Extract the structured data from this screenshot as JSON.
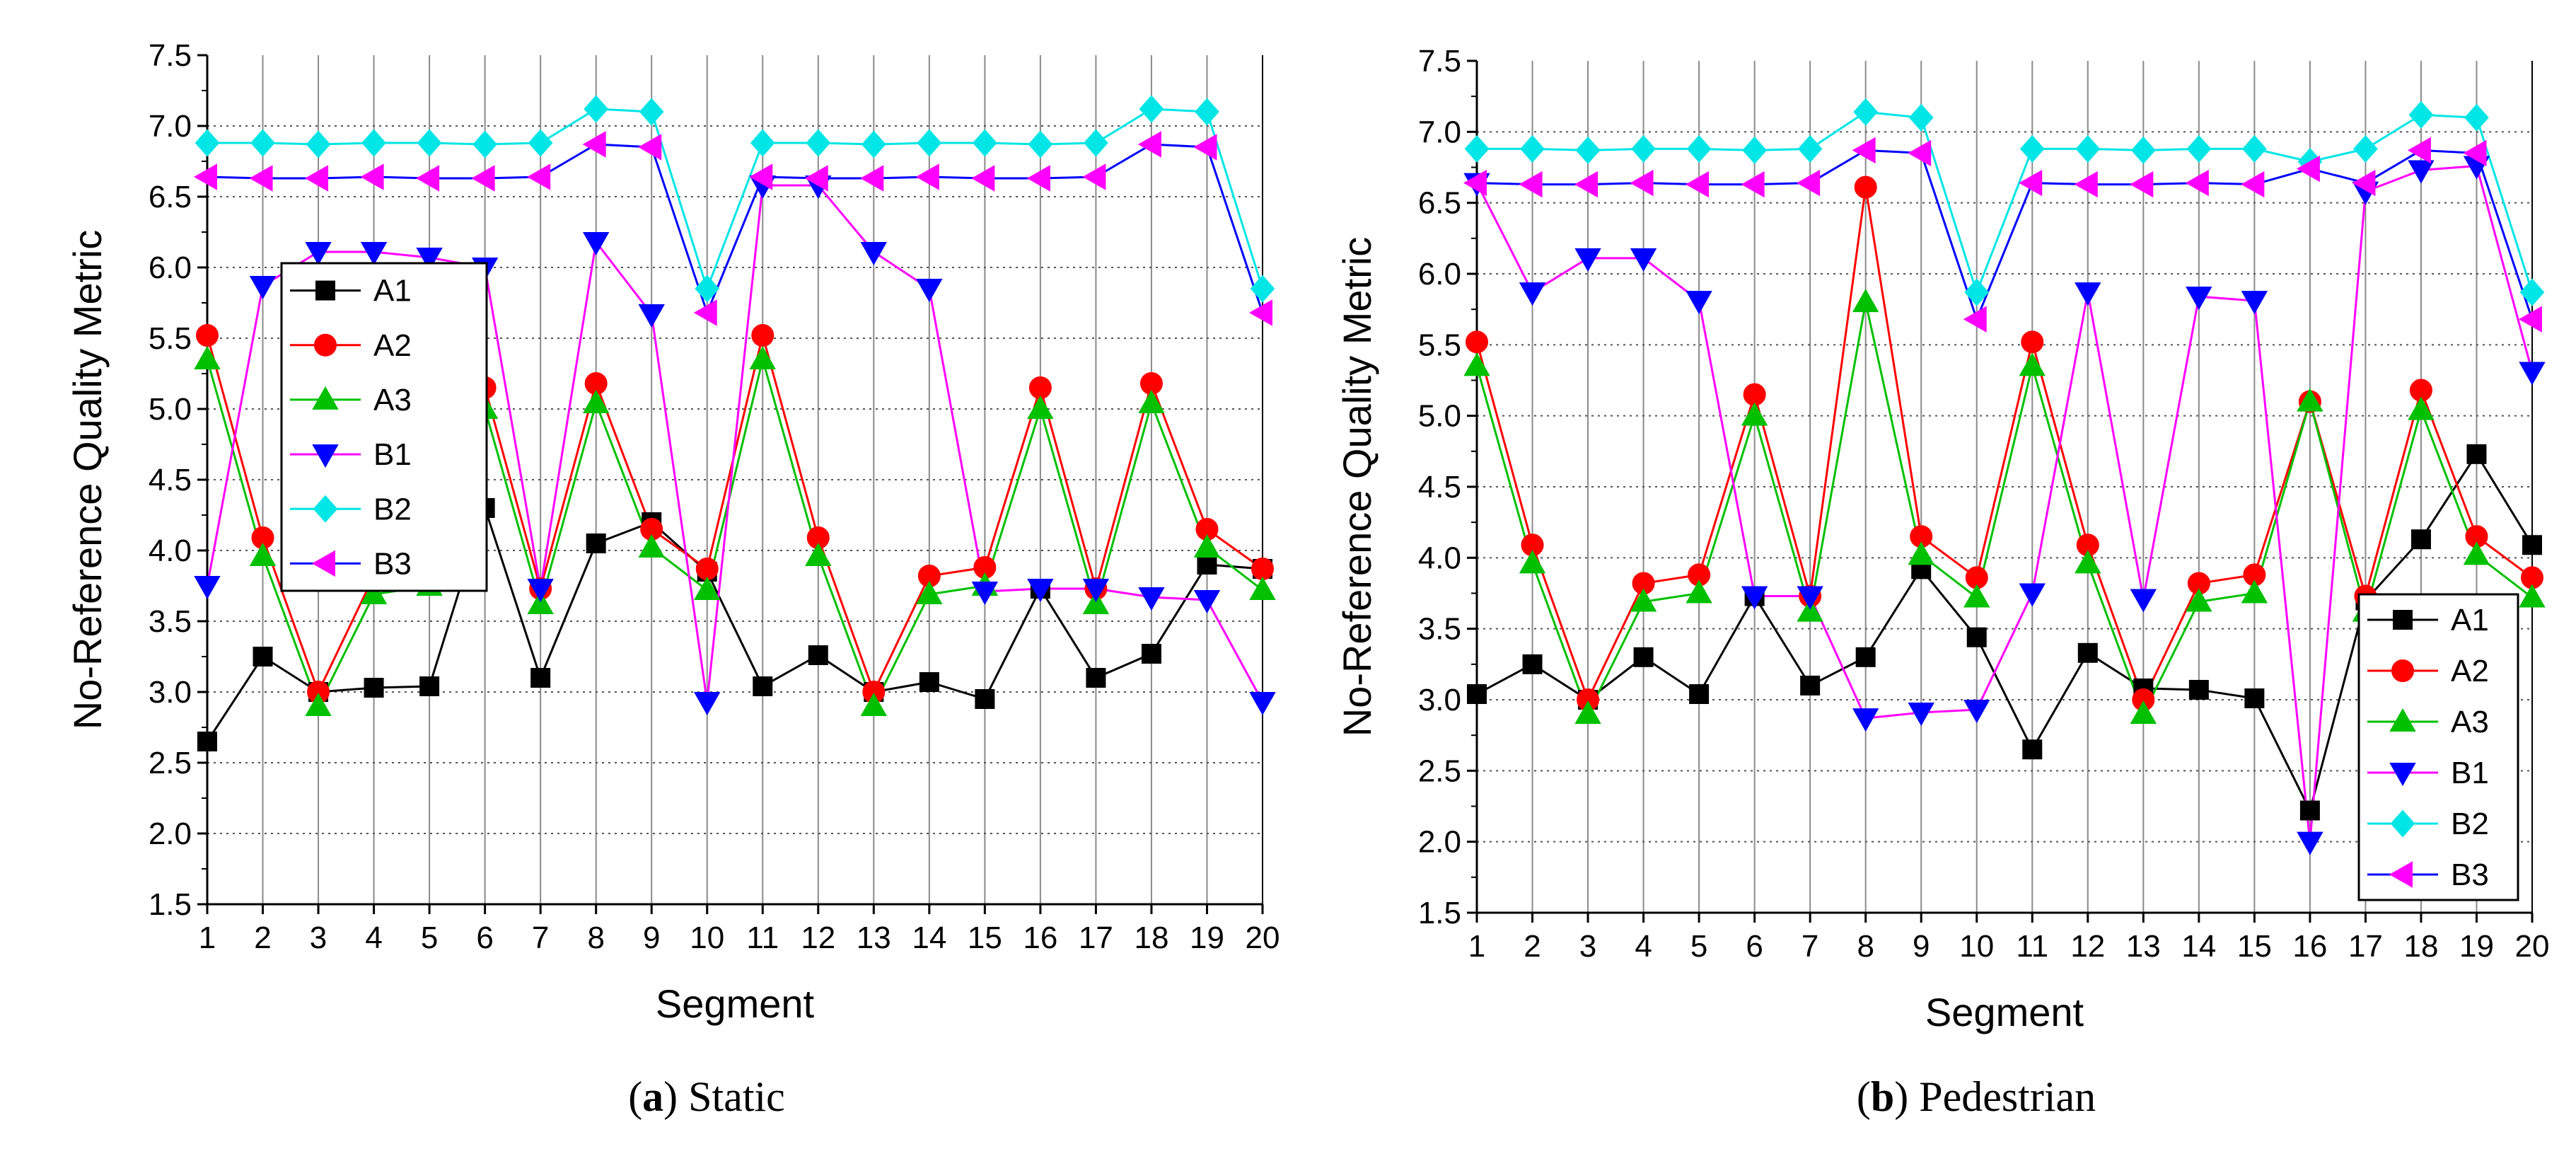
{
  "chart_data": [
    {
      "type": "line",
      "panel": "a",
      "caption_label": "a",
      "caption_text": "Static",
      "xlabel": "Segment",
      "ylabel": "No-Reference Quality Metric",
      "xlim": [
        1,
        20
      ],
      "ylim": [
        1.5,
        7.5
      ],
      "x_ticks": [
        1,
        2,
        3,
        4,
        5,
        6,
        7,
        8,
        9,
        10,
        11,
        12,
        13,
        14,
        15,
        16,
        17,
        18,
        19,
        20
      ],
      "y_ticks": [
        1.5,
        2.0,
        2.5,
        3.0,
        3.5,
        4.0,
        4.5,
        5.0,
        5.5,
        6.0,
        6.5,
        7.0,
        7.5
      ],
      "grid": "vertical solid, horizontal dotted",
      "legend_position": "center-left",
      "x": [
        1,
        2,
        3,
        4,
        5,
        6,
        7,
        8,
        9,
        10,
        11,
        12,
        13,
        14,
        15,
        16,
        17,
        18,
        19,
        20
      ],
      "series": [
        {
          "name": "A1",
          "color": "#000000",
          "marker": "square",
          "values": [
            2.65,
            3.25,
            3.0,
            3.03,
            3.04,
            4.3,
            3.1,
            4.05,
            4.2,
            3.85,
            3.04,
            3.26,
            3.0,
            3.07,
            2.95,
            3.73,
            3.1,
            3.27,
            3.9,
            3.87
          ]
        },
        {
          "name": "A2",
          "color": "#ff0000",
          "marker": "circle",
          "values": [
            5.52,
            4.09,
            3.0,
            3.82,
            3.88,
            5.15,
            3.73,
            5.18,
            4.15,
            3.87,
            5.52,
            4.09,
            3.0,
            3.82,
            3.88,
            5.15,
            3.73,
            5.18,
            4.15,
            3.87
          ]
        },
        {
          "name": "A3",
          "color": "#00c000",
          "marker": "triangle-up",
          "values": [
            5.35,
            3.96,
            2.9,
            3.69,
            3.75,
            5.0,
            3.62,
            5.04,
            4.02,
            3.72,
            5.35,
            3.96,
            2.9,
            3.69,
            3.75,
            5.0,
            3.62,
            5.04,
            4.02,
            3.72
          ]
        },
        {
          "name": "B1",
          "color": "#0000ff",
          "marker": "triangle-down",
          "values": [
            3.75,
            5.87,
            6.11,
            6.11,
            6.07,
            6.0,
            3.73,
            6.18,
            5.67,
            2.93,
            6.58,
            6.58,
            6.11,
            5.85,
            3.71,
            3.73,
            3.73,
            3.67,
            3.65,
            2.93
          ]
        },
        {
          "name": "B2",
          "color": "#00e5e5",
          "marker": "diamond",
          "values": [
            6.88,
            6.88,
            6.87,
            6.88,
            6.88,
            6.87,
            6.88,
            7.12,
            7.1,
            5.85,
            6.88,
            6.88,
            6.87,
            6.88,
            6.88,
            6.87,
            6.88,
            7.12,
            7.1,
            5.85
          ]
        },
        {
          "name": "B3",
          "color": "#ff00ff",
          "marker": "triangle-left",
          "values": [
            6.64,
            6.63,
            6.63,
            6.64,
            6.63,
            6.63,
            6.64,
            6.87,
            6.85,
            5.68,
            6.64,
            6.63,
            6.63,
            6.64,
            6.63,
            6.63,
            6.64,
            6.87,
            6.85,
            5.68
          ]
        }
      ],
      "line_colors": {
        "B1": "#ff00ff",
        "B3": "#0000ff"
      }
    },
    {
      "type": "line",
      "panel": "b",
      "caption_label": "b",
      "caption_text": "Pedestrian",
      "xlabel": "Segment",
      "ylabel": "No-Reference Quality Metric",
      "xlim": [
        1,
        20
      ],
      "ylim": [
        1.5,
        7.5
      ],
      "x_ticks": [
        1,
        2,
        3,
        4,
        5,
        6,
        7,
        8,
        9,
        10,
        11,
        12,
        13,
        14,
        15,
        16,
        17,
        18,
        19,
        20
      ],
      "y_ticks": [
        1.5,
        2.0,
        2.5,
        3.0,
        3.5,
        4.0,
        4.5,
        5.0,
        5.5,
        6.0,
        6.5,
        7.0,
        7.5
      ],
      "grid": "vertical solid, horizontal dotted",
      "legend_position": "bottom-right",
      "x": [
        1,
        2,
        3,
        4,
        5,
        6,
        7,
        8,
        9,
        10,
        11,
        12,
        13,
        14,
        15,
        16,
        17,
        18,
        19,
        20
      ],
      "series": [
        {
          "name": "A1",
          "color": "#000000",
          "marker": "square",
          "values": [
            3.04,
            3.25,
            3.0,
            3.3,
            3.04,
            3.73,
            3.1,
            3.3,
            3.92,
            3.44,
            2.65,
            3.33,
            3.08,
            3.07,
            3.01,
            2.22,
            3.7,
            4.13,
            4.73,
            4.09
          ]
        },
        {
          "name": "A2",
          "color": "#ff0000",
          "marker": "circle",
          "values": [
            5.52,
            4.09,
            3.0,
            3.82,
            3.88,
            5.15,
            3.73,
            6.61,
            4.15,
            3.86,
            5.52,
            4.09,
            3.0,
            3.82,
            3.88,
            5.1,
            3.73,
            5.18,
            4.15,
            3.86
          ]
        },
        {
          "name": "A3",
          "color": "#00c000",
          "marker": "triangle-up",
          "values": [
            5.35,
            3.96,
            2.9,
            3.69,
            3.75,
            5.0,
            3.62,
            5.8,
            4.02,
            3.72,
            5.35,
            3.96,
            2.9,
            3.69,
            3.75,
            5.1,
            3.62,
            5.04,
            4.02,
            3.72
          ]
        },
        {
          "name": "B1",
          "color": "#0000ff",
          "marker": "triangle-down",
          "values": [
            6.64,
            5.87,
            6.11,
            6.11,
            5.81,
            3.73,
            3.73,
            2.87,
            2.91,
            2.93,
            3.75,
            5.87,
            3.71,
            5.84,
            5.81,
            2.0,
            6.58,
            6.73,
            6.76,
            5.31
          ]
        },
        {
          "name": "B2",
          "color": "#00e5e5",
          "marker": "diamond",
          "values": [
            6.88,
            6.88,
            6.87,
            6.88,
            6.88,
            6.87,
            6.88,
            7.14,
            7.1,
            5.87,
            6.88,
            6.88,
            6.87,
            6.88,
            6.88,
            6.79,
            6.88,
            7.12,
            7.1,
            5.87
          ]
        },
        {
          "name": "B3",
          "color": "#ff00ff",
          "marker": "triangle-left",
          "values": [
            6.64,
            6.63,
            6.63,
            6.64,
            6.63,
            6.63,
            6.64,
            6.87,
            6.85,
            5.68,
            6.64,
            6.63,
            6.63,
            6.64,
            6.63,
            6.74,
            6.64,
            6.87,
            6.85,
            5.68
          ]
        }
      ],
      "line_colors": {
        "B1": "#ff00ff",
        "B3": "#0000ff"
      }
    }
  ]
}
